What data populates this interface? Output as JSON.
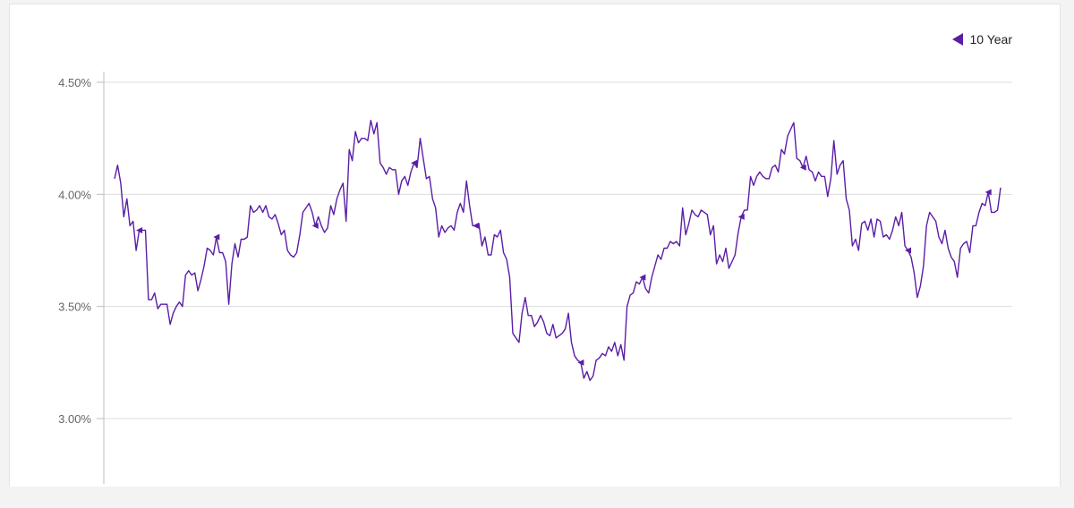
{
  "colors": {
    "series": "#5a1ea6",
    "grid": "#dcdcdc",
    "axis": "#bdbdbd",
    "tick_text": "#666666"
  },
  "chart_data": {
    "type": "line",
    "title": "",
    "xlabel": "",
    "ylabel": "",
    "ylim": [
      2.8,
      4.55
    ],
    "yticks": [
      {
        "value": 3.0,
        "label": "3.00%"
      },
      {
        "value": 3.5,
        "label": "3.50%"
      },
      {
        "value": 4.0,
        "label": "4.00%"
      },
      {
        "value": 4.5,
        "label": "4.50%"
      }
    ],
    "grid": true,
    "legend_position": "top-right",
    "legend": [
      {
        "label": "10 Year",
        "marker": "triangle-left"
      }
    ],
    "series": [
      {
        "name": "10 Year",
        "marker": "triangle-left",
        "marker_indices": [
          8,
          33,
          65,
          97,
          117,
          151,
          171,
          203,
          223,
          257,
          283,
          300,
          328,
          345,
          381,
          404,
          421,
          441,
          458,
          470
        ],
        "values": [
          4.07,
          4.13,
          4.05,
          3.9,
          3.98,
          3.86,
          3.88,
          3.75,
          3.84,
          3.84,
          3.84,
          3.53,
          3.53,
          3.56,
          3.49,
          3.51,
          3.51,
          3.51,
          3.42,
          3.47,
          3.5,
          3.52,
          3.5,
          3.64,
          3.66,
          3.64,
          3.65,
          3.57,
          3.62,
          3.68,
          3.76,
          3.75,
          3.73,
          3.81,
          3.74,
          3.74,
          3.7,
          3.51,
          3.69,
          3.78,
          3.72,
          3.8,
          3.8,
          3.81,
          3.95,
          3.92,
          3.93,
          3.95,
          3.92,
          3.95,
          3.9,
          3.89,
          3.91,
          3.87,
          3.82,
          3.84,
          3.75,
          3.73,
          3.72,
          3.74,
          3.82,
          3.92,
          3.94,
          3.96,
          3.92,
          3.86,
          3.9,
          3.86,
          3.83,
          3.85,
          3.95,
          3.91,
          3.98,
          4.02,
          4.05,
          3.88,
          4.2,
          4.15,
          4.28,
          4.23,
          4.25,
          4.25,
          4.24,
          4.33,
          4.27,
          4.32,
          4.14,
          4.12,
          4.09,
          4.12,
          4.11,
          4.11,
          4.0,
          4.06,
          4.08,
          4.04,
          4.1,
          4.14,
          4.12,
          4.25,
          4.16,
          4.07,
          4.08,
          3.98,
          3.94,
          3.81,
          3.86,
          3.83,
          3.85,
          3.86,
          3.84,
          3.92,
          3.96,
          3.92,
          4.06,
          3.95,
          3.86,
          3.86,
          3.87,
          3.77,
          3.81,
          3.73,
          3.73,
          3.82,
          3.81,
          3.84,
          3.74,
          3.71,
          3.63,
          3.38,
          3.36,
          3.34,
          3.47,
          3.54,
          3.46,
          3.46,
          3.41,
          3.43,
          3.46,
          3.43,
          3.38,
          3.37,
          3.42,
          3.36,
          3.37,
          3.38,
          3.4,
          3.47,
          3.34,
          3.28,
          3.26,
          3.25,
          3.18,
          3.21,
          3.17,
          3.19,
          3.26,
          3.27,
          3.29,
          3.28,
          3.32,
          3.3,
          3.34,
          3.28,
          3.33,
          3.26,
          3.5,
          3.55,
          3.56,
          3.61,
          3.6,
          3.63,
          3.58,
          3.56,
          3.63,
          3.68,
          3.73,
          3.71,
          3.76,
          3.76,
          3.79,
          3.78,
          3.79,
          3.77,
          3.94,
          3.82,
          3.87,
          3.93,
          3.91,
          3.9,
          3.93,
          3.92,
          3.91,
          3.82,
          3.86,
          3.69,
          3.73,
          3.7,
          3.76,
          3.67,
          3.7,
          3.73,
          3.83,
          3.9,
          3.93,
          3.93,
          4.08,
          4.04,
          4.08,
          4.1,
          4.08,
          4.07,
          4.07,
          4.12,
          4.13,
          4.1,
          4.2,
          4.18,
          4.26,
          4.29,
          4.32,
          4.16,
          4.15,
          4.12,
          4.17,
          4.11,
          4.1,
          4.06,
          4.1,
          4.08,
          4.08,
          3.99,
          4.07,
          4.24,
          4.09,
          4.13,
          4.15,
          3.98,
          3.93,
          3.77,
          3.8,
          3.75,
          3.87,
          3.88,
          3.84,
          3.89,
          3.81,
          3.89,
          3.88,
          3.81,
          3.82,
          3.8,
          3.84,
          3.9,
          3.86,
          3.92,
          3.77,
          3.75,
          3.72,
          3.65,
          3.54,
          3.59,
          3.68,
          3.86,
          3.92,
          3.9,
          3.88,
          3.81,
          3.78,
          3.84,
          3.76,
          3.72,
          3.7,
          3.63,
          3.76,
          3.78,
          3.79,
          3.74,
          3.86,
          3.86,
          3.92,
          3.96,
          3.95,
          4.01,
          3.92,
          3.92,
          3.93,
          4.03
        ]
      }
    ]
  }
}
